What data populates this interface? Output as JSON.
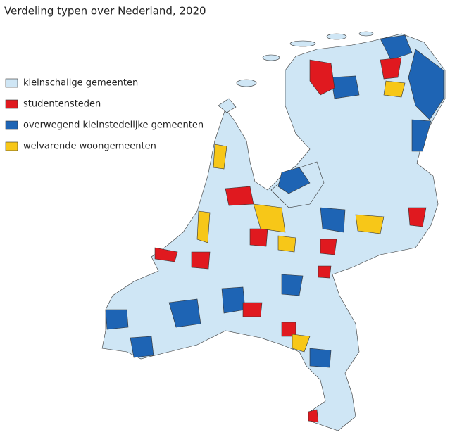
{
  "title": "Verdeling typen over Nederland, 2020",
  "legend": [
    {
      "label": "kleinschalige gemeenten",
      "color": "#cfe6f5"
    },
    {
      "label": "studentensteden",
      "color": "#e0191f"
    },
    {
      "label": "overwegend kleinstedelijke gemeenten",
      "color": "#1e64b4"
    },
    {
      "label": "welvarende woongemeenten",
      "color": "#f7c718"
    }
  ]
}
